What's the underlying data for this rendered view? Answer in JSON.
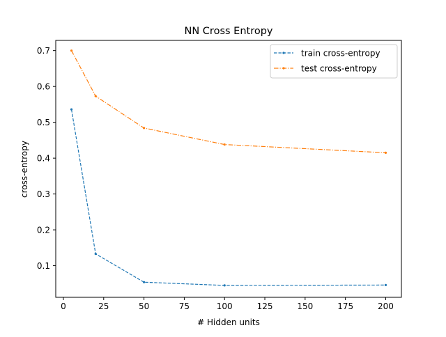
{
  "chart_data": {
    "type": "line",
    "title": "NN Cross Entropy",
    "xlabel": "# Hidden units",
    "ylabel": "cross-entropy",
    "xlim": [
      -4.75,
      209.75
    ],
    "ylim": [
      0.0118,
      0.7285
    ],
    "xticks": [
      0,
      25,
      50,
      75,
      100,
      125,
      150,
      175,
      200
    ],
    "yticks": [
      0.1,
      0.2,
      0.3,
      0.4,
      0.5,
      0.6,
      0.7
    ],
    "ytick_labels": [
      "0.1",
      "0.2",
      "0.3",
      "0.4",
      "0.5",
      "0.6",
      "0.7"
    ],
    "grid": false,
    "legend_position": "upper right",
    "series": [
      {
        "name": "train cross-entropy",
        "color": "#1f77b4",
        "linestyle": "dashed",
        "marker": "point",
        "x": [
          5,
          20,
          50,
          100,
          200
        ],
        "y": [
          0.536,
          0.133,
          0.054,
          0.045,
          0.046
        ]
      },
      {
        "name": "test cross-entropy",
        "color": "#ff7f0e",
        "linestyle": "dashdot",
        "marker": "point",
        "x": [
          5,
          20,
          50,
          100,
          200
        ],
        "y": [
          0.7,
          0.573,
          0.484,
          0.438,
          0.415
        ]
      }
    ]
  }
}
